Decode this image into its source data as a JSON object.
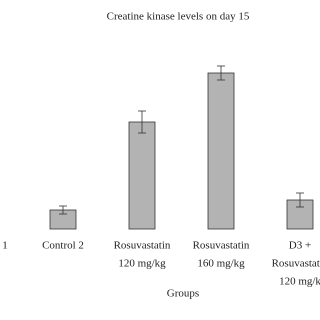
{
  "chart_data": {
    "type": "bar",
    "title": "Creatine kinase levels on day 15",
    "x_label": "Groups",
    "categories": [
      [
        "1"
      ],
      [
        "Control 2"
      ],
      [
        "Rosuvastatin",
        "120 mg/kg"
      ],
      [
        "Rosuvastatin",
        "160 mg/kg"
      ],
      [
        "D3 +",
        "Rosuvastatin",
        "120 mg/k"
      ]
    ],
    "values": [
      null,
      19,
      107,
      156,
      29
    ],
    "errors": [
      null,
      4,
      11,
      7,
      7
    ],
    "color": "#b3b3b3",
    "ylim": [
      0,
      170
    ]
  }
}
